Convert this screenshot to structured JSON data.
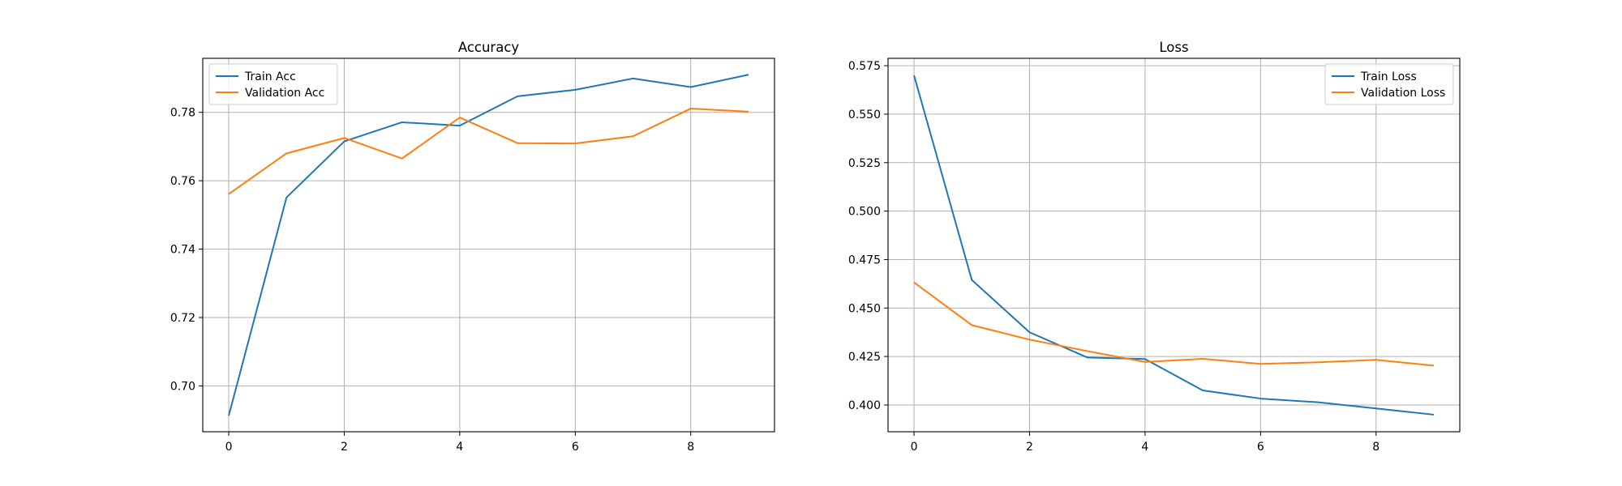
{
  "chart_data": [
    {
      "type": "line",
      "title": "Accuracy",
      "xlabel": "",
      "ylabel": "",
      "x": [
        0,
        1,
        2,
        3,
        4,
        5,
        6,
        7,
        8,
        9
      ],
      "xlim": [
        -0.45,
        9.45
      ],
      "ylim": [
        0.6866,
        0.7958
      ],
      "xticks": [
        0,
        2,
        4,
        6,
        8
      ],
      "yticks": [
        0.7,
        0.72,
        0.74,
        0.76,
        0.78
      ],
      "xtick_labels": [
        "0",
        "2",
        "4",
        "6",
        "8"
      ],
      "ytick_labels": [
        "0.70",
        "0.72",
        "0.74",
        "0.76",
        "0.78"
      ],
      "grid": true,
      "legend_position": "upper left",
      "series": [
        {
          "name": "Train Acc",
          "color": "#1f77b4",
          "values": [
            0.6913,
            0.7551,
            0.7715,
            0.7771,
            0.7761,
            0.7847,
            0.7866,
            0.7899,
            0.7874,
            0.791
          ]
        },
        {
          "name": "Validation Acc",
          "color": "#ff7f0e",
          "values": [
            0.7561,
            0.768,
            0.7725,
            0.7665,
            0.7785,
            0.771,
            0.7709,
            0.773,
            0.7811,
            0.7802
          ]
        }
      ]
    },
    {
      "type": "line",
      "title": "Loss",
      "xlabel": "",
      "ylabel": "",
      "x": [
        0,
        1,
        2,
        3,
        4,
        5,
        6,
        7,
        8,
        9
      ],
      "xlim": [
        -0.45,
        9.45
      ],
      "ylim": [
        0.3862,
        0.5788
      ],
      "xticks": [
        0,
        2,
        4,
        6,
        8
      ],
      "yticks": [
        0.4,
        0.425,
        0.45,
        0.475,
        0.5,
        0.525,
        0.55,
        0.575
      ],
      "xtick_labels": [
        "0",
        "2",
        "4",
        "6",
        "8"
      ],
      "ytick_labels": [
        "0.400",
        "0.425",
        "0.450",
        "0.475",
        "0.500",
        "0.525",
        "0.550",
        "0.575"
      ],
      "grid": true,
      "legend_position": "upper right",
      "series": [
        {
          "name": "Train Loss",
          "color": "#1f77b4",
          "values": [
            0.57,
            0.4645,
            0.4375,
            0.4245,
            0.4237,
            0.4075,
            0.4033,
            0.4014,
            0.3982,
            0.395
          ]
        },
        {
          "name": "Validation Loss",
          "color": "#ff7f0e",
          "values": [
            0.4632,
            0.4412,
            0.4337,
            0.4278,
            0.4222,
            0.4238,
            0.4212,
            0.422,
            0.4233,
            0.4203
          ]
        }
      ]
    }
  ]
}
